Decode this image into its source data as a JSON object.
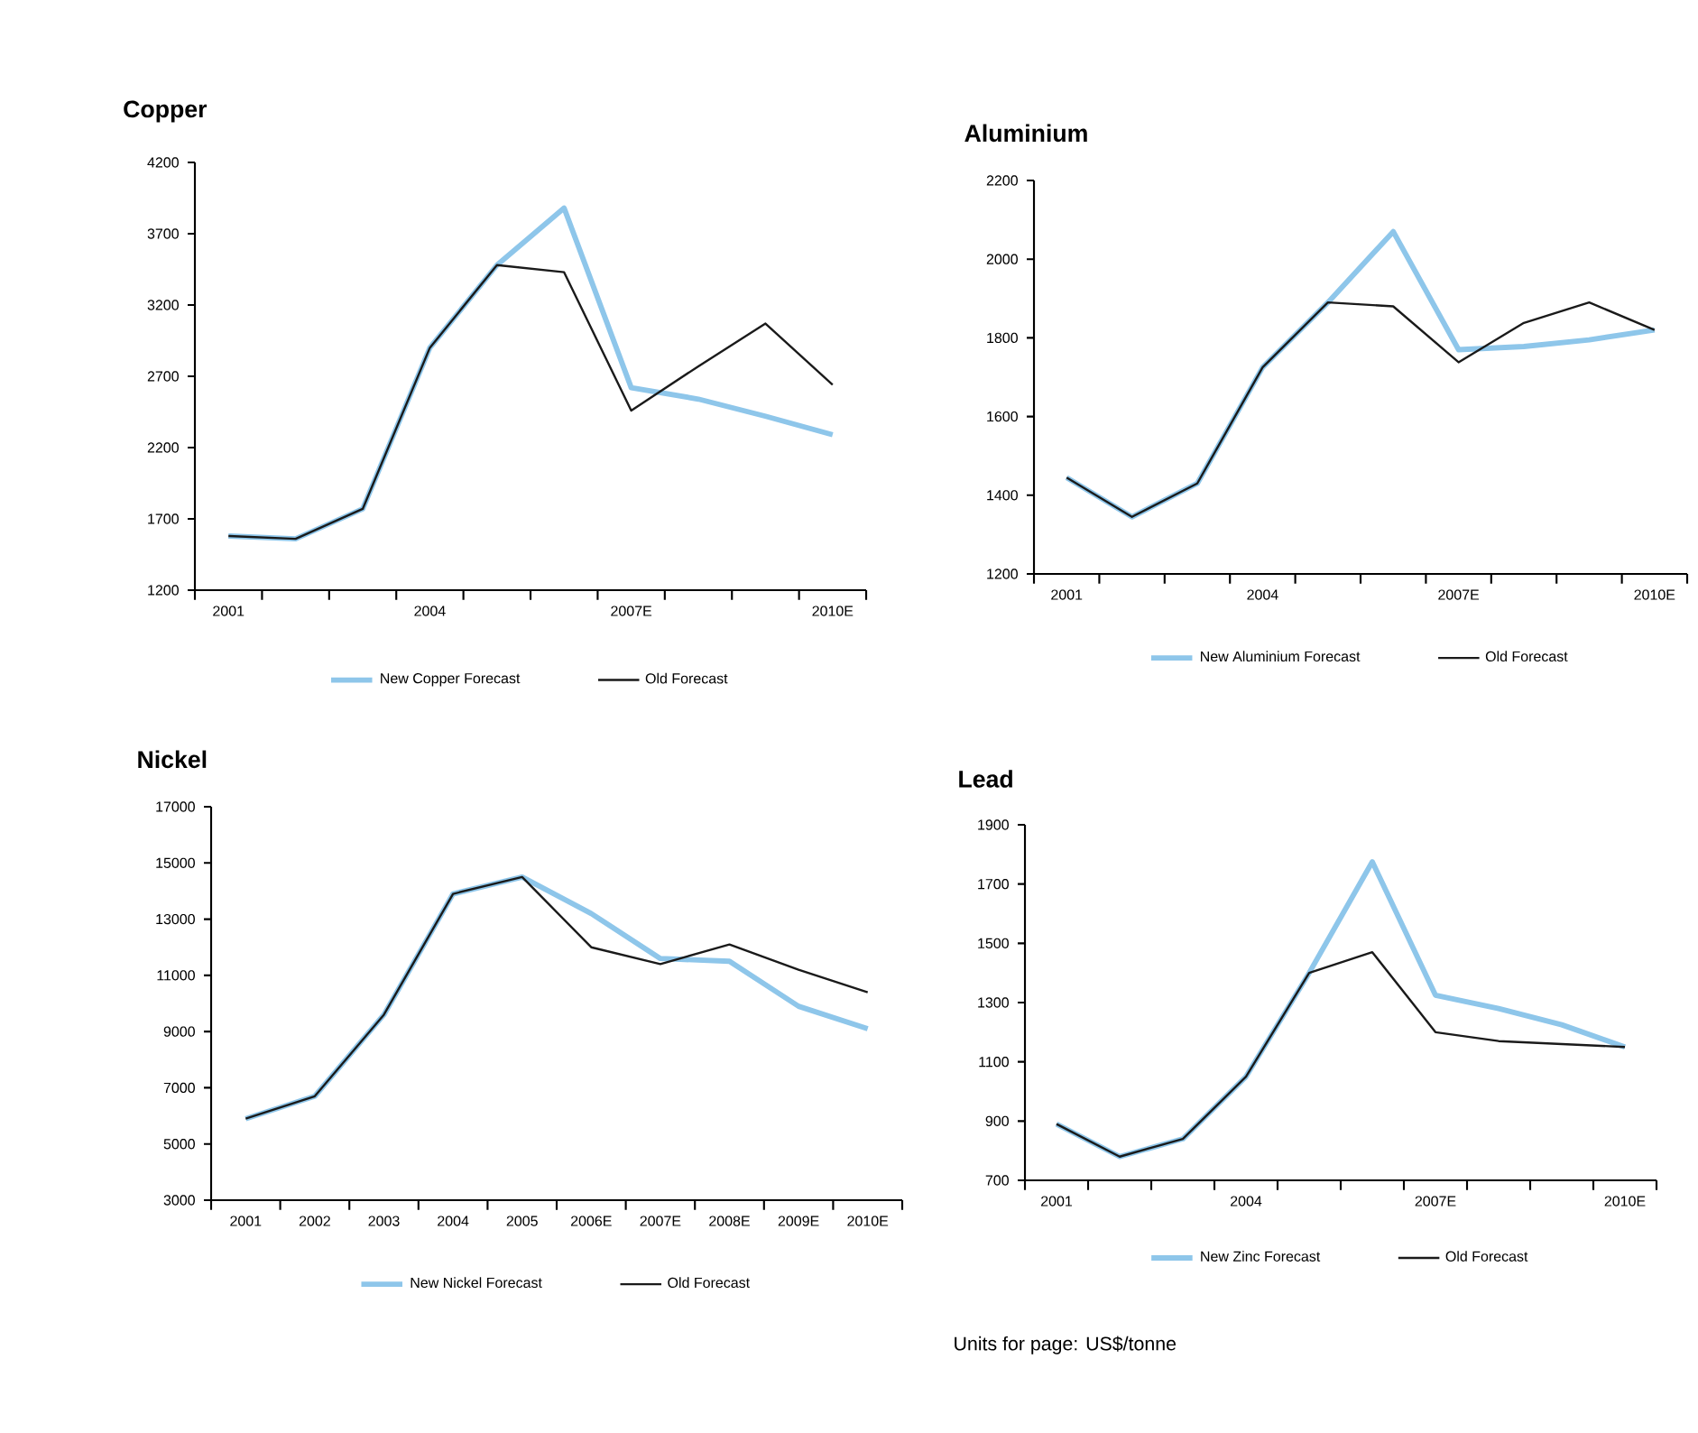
{
  "chart_data": [
    {
      "type": "line",
      "title": "Copper",
      "categories": [
        "2001",
        null,
        null,
        "2004",
        null,
        null,
        "2007E",
        null,
        null,
        "2010E"
      ],
      "ylim": [
        1200,
        4200
      ],
      "yticks": [
        1200,
        1700,
        2200,
        2700,
        3200,
        3700,
        4200
      ],
      "legend": "bottom",
      "marker": "none",
      "line_style": "solid",
      "grid": false,
      "series": [
        {
          "name": "New Copper Forecast",
          "color": "#8ec6ea",
          "values": [
            1580,
            1560,
            1770,
            2900,
            3480,
            3880,
            2620,
            2540,
            2420,
            2290
          ]
        },
        {
          "name": "Old Forecast",
          "color": "#1a1a1a",
          "values": [
            1580,
            1560,
            1770,
            2900,
            3480,
            3430,
            2460,
            2770,
            3070,
            2640
          ]
        }
      ]
    },
    {
      "type": "line",
      "title": "Aluminium",
      "categories": [
        "2001",
        null,
        null,
        "2004",
        null,
        null,
        "2007E",
        null,
        null,
        "2010E"
      ],
      "ylim": [
        1200,
        2200
      ],
      "yticks": [
        1200,
        1400,
        1600,
        1800,
        2000,
        2200
      ],
      "legend": "bottom",
      "marker": "none",
      "line_style": "solid",
      "grid": false,
      "series": [
        {
          "name": "New Aluminium Forecast",
          "color": "#8ec6ea",
          "values": [
            1445,
            1345,
            1430,
            1725,
            1890,
            2070,
            1770,
            1778,
            1795,
            1820
          ]
        },
        {
          "name": "Old Forecast",
          "color": "#1a1a1a",
          "values": [
            1445,
            1345,
            1430,
            1725,
            1890,
            1880,
            1738,
            1838,
            1890,
            1820
          ]
        }
      ]
    },
    {
      "type": "line",
      "title": "Nickel",
      "categories": [
        "2001",
        "2002",
        "2003",
        "2004",
        "2005",
        "2006E",
        "2007E",
        "2008E",
        "2009E",
        "2010E"
      ],
      "ylim": [
        3000,
        17000
      ],
      "yticks": [
        3000,
        5000,
        7000,
        9000,
        11000,
        13000,
        15000,
        17000
      ],
      "legend": "bottom",
      "marker": "none",
      "line_style": "solid",
      "grid": false,
      "series": [
        {
          "name": "New Nickel Forecast",
          "color": "#8ec6ea",
          "values": [
            5900,
            6700,
            9600,
            13900,
            14500,
            13200,
            11600,
            11500,
            9900,
            9100
          ]
        },
        {
          "name": "Old Forecast",
          "color": "#1a1a1a",
          "values": [
            5900,
            6700,
            9600,
            13900,
            14500,
            12000,
            11400,
            12100,
            11200,
            10400
          ]
        }
      ]
    },
    {
      "type": "line",
      "title": "Lead",
      "categories": [
        "2001",
        null,
        null,
        "2004",
        null,
        null,
        "2007E",
        null,
        null,
        "2010E"
      ],
      "ylim": [
        700,
        1900
      ],
      "yticks": [
        700,
        900,
        1100,
        1300,
        1500,
        1700,
        1900
      ],
      "legend": "bottom",
      "marker": "none",
      "line_style": "solid",
      "grid": false,
      "annotations": [
        "Units for page: US$/tonne"
      ],
      "series": [
        {
          "name": "New Zinc Forecast",
          "color": "#8ec6ea",
          "values": [
            890,
            780,
            840,
            1050,
            1400,
            1775,
            1325,
            1280,
            1225,
            1150
          ]
        },
        {
          "name": "Old Forecast",
          "color": "#1a1a1a",
          "values": [
            890,
            780,
            840,
            1050,
            1400,
            1470,
            1200,
            1170,
            1160,
            1150
          ]
        }
      ]
    }
  ]
}
